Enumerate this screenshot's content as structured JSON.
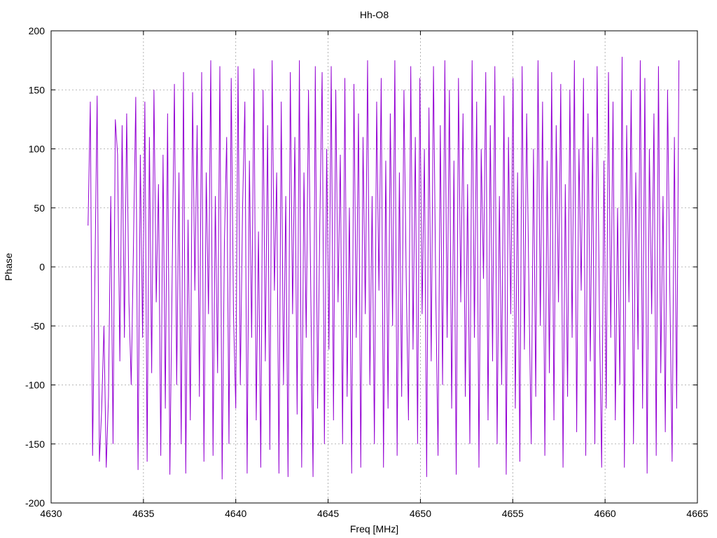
{
  "chart_data": {
    "type": "line",
    "title": "Hh-O8",
    "xlabel": "Freq [MHz]",
    "ylabel": "Phase",
    "xlim": [
      4630,
      4665
    ],
    "ylim": [
      -200,
      200
    ],
    "x_ticks": [
      4630,
      4635,
      4640,
      4645,
      4650,
      4655,
      4660,
      4665
    ],
    "y_ticks": [
      -200,
      -150,
      -100,
      -50,
      0,
      50,
      100,
      150,
      200
    ],
    "grid": true,
    "series_color": "#9400d3",
    "series": [
      {
        "x_start": 4632.0,
        "x_end": 4664.0,
        "y": [
          35,
          140,
          -160,
          -10,
          145,
          -165,
          -120,
          -50,
          -170,
          -110,
          60,
          -150,
          125,
          95,
          -80,
          120,
          -60,
          130,
          -30,
          -100,
          20,
          144,
          -172,
          95,
          -60,
          140,
          -165,
          110,
          -90,
          150,
          -30,
          70,
          -160,
          95,
          -120,
          130,
          -176,
          -10,
          155,
          -100,
          80,
          -150,
          165,
          -175,
          40,
          -130,
          148,
          -20,
          120,
          -110,
          165,
          -165,
          80,
          -40,
          175,
          -160,
          60,
          -90,
          170,
          -180,
          20,
          110,
          -150,
          160,
          -40,
          -120,
          170,
          -100,
          50,
          140,
          -175,
          90,
          -60,
          168,
          -130,
          30,
          -170,
          150,
          -80,
          120,
          -155,
          175,
          -20,
          80,
          -175,
          140,
          -100,
          60,
          -178,
          165,
          -40,
          110,
          -125,
          175,
          -170,
          80,
          -60,
          150,
          -20,
          -178,
          170,
          -120,
          40,
          165,
          -150,
          100,
          -70,
          170,
          -130,
          150,
          -30,
          95,
          -150,
          160,
          -110,
          50,
          -175,
          155,
          -60,
          130,
          -170,
          110,
          -40,
          175,
          -100,
          60,
          -150,
          140,
          -20,
          160,
          -170,
          90,
          -120,
          130,
          -50,
          175,
          -160,
          80,
          -110,
          150,
          -10,
          -130,
          170,
          -70,
          110,
          -150,
          160,
          -40,
          100,
          -178,
          135,
          -80,
          170,
          -20,
          -160,
          120,
          -100,
          175,
          -60,
          150,
          -120,
          90,
          -176,
          160,
          -30,
          130,
          -110,
          70,
          -150,
          175,
          -60,
          140,
          -170,
          100,
          -10,
          165,
          -130,
          120,
          -80,
          170,
          -150,
          60,
          -100,
          145,
          -176,
          110,
          -40,
          160,
          -120,
          80,
          -165,
          170,
          -70,
          130,
          -20,
          -150,
          100,
          -110,
          175,
          -50,
          140,
          -160,
          90,
          -90,
          165,
          -130,
          120,
          -30,
          155,
          -170,
          70,
          -110,
          150,
          -60,
          175,
          -140,
          100,
          -20,
          160,
          -160,
          130,
          -80,
          110,
          -150,
          170,
          -40,
          -170,
          90,
          -120,
          165,
          -60,
          140,
          -130,
          50,
          -100,
          178,
          -170,
          120,
          -30,
          150,
          -150,
          80,
          -70,
          175,
          -120,
          160,
          -175,
          100,
          -40,
          130,
          -160,
          170,
          -90,
          60,
          -140,
          150,
          -20,
          -165,
          110,
          -120,
          175
        ]
      }
    ]
  }
}
